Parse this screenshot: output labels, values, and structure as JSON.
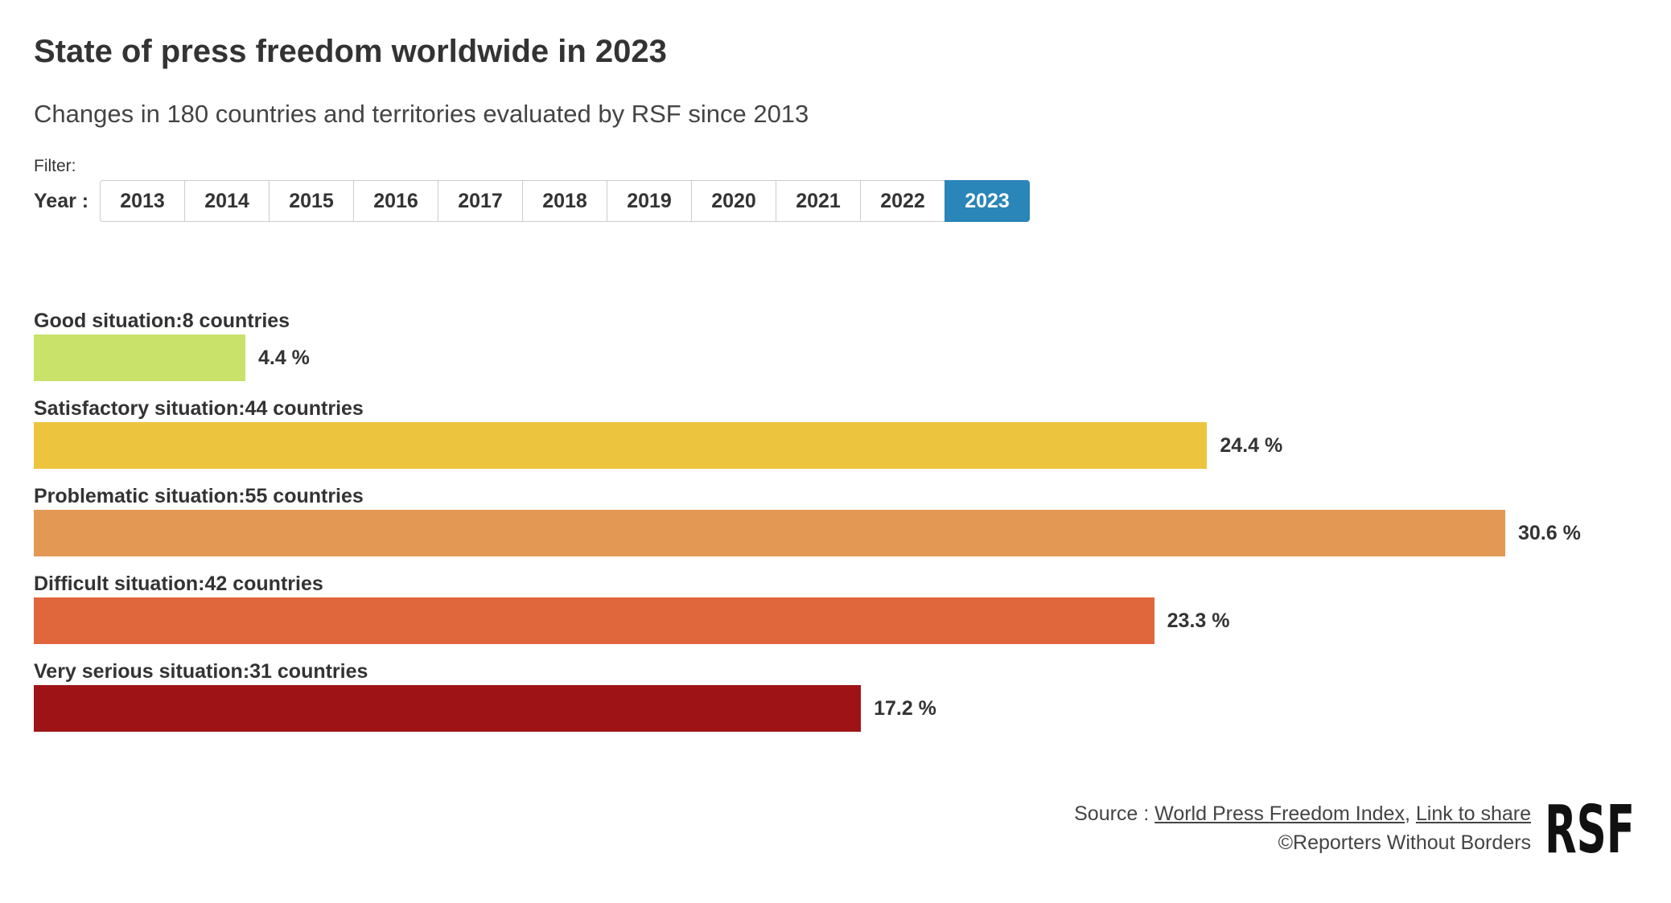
{
  "title": "State of press freedom worldwide in 2023",
  "subtitle": "Changes in 180 countries and territories evaluated by RSF since 2013",
  "filter": {
    "label": "Filter:",
    "year_label": "Year :",
    "years": [
      "2013",
      "2014",
      "2015",
      "2016",
      "2017",
      "2018",
      "2019",
      "2020",
      "2021",
      "2022",
      "2023"
    ],
    "selected": "2023",
    "active_color": "#2a85b8"
  },
  "chart_data": {
    "type": "bar",
    "orientation": "horizontal",
    "categories": [
      "Good situation:8 countries",
      "Satisfactory situation:44 countries",
      "Problematic situation:55 countries",
      "Difficult situation:42 countries",
      "Very serious situation:31 countries"
    ],
    "values": [
      4.4,
      24.4,
      30.6,
      23.3,
      17.2
    ],
    "value_labels": [
      "4.4 %",
      "24.4 %",
      "30.6 %",
      "23.3 %",
      "17.2 %"
    ],
    "colors": [
      "#c8e26a",
      "#ecc43e",
      "#e39953",
      "#e0663c",
      "#9e1416"
    ],
    "unit": "%"
  },
  "source": {
    "prefix": "Source : ",
    "link1": "World Press Freedom Index",
    "separator": ", ",
    "link2": "Link to share",
    "copyright": "©Reporters Without Borders"
  },
  "logo": {
    "text": "RSF"
  }
}
